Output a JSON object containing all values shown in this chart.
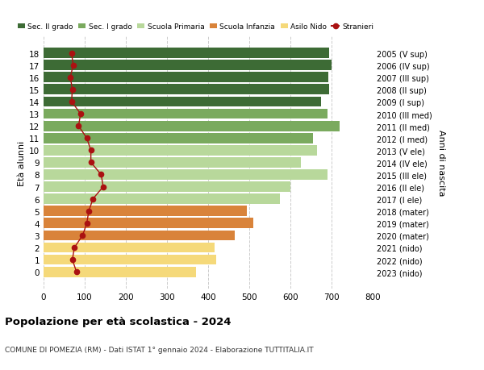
{
  "ages": [
    18,
    17,
    16,
    15,
    14,
    13,
    12,
    11,
    10,
    9,
    8,
    7,
    6,
    5,
    4,
    3,
    2,
    1,
    0
  ],
  "bar_values": [
    695,
    700,
    692,
    695,
    675,
    690,
    720,
    655,
    665,
    625,
    690,
    600,
    575,
    495,
    510,
    465,
    415,
    420,
    370
  ],
  "stranieri_values": [
    68,
    72,
    65,
    70,
    68,
    90,
    85,
    105,
    115,
    115,
    140,
    145,
    120,
    110,
    105,
    95,
    75,
    70,
    80
  ],
  "right_labels": [
    "2005 (V sup)",
    "2006 (IV sup)",
    "2007 (III sup)",
    "2008 (II sup)",
    "2009 (I sup)",
    "2010 (III med)",
    "2011 (II med)",
    "2012 (I med)",
    "2013 (V ele)",
    "2014 (IV ele)",
    "2015 (III ele)",
    "2016 (II ele)",
    "2017 (I ele)",
    "2018 (mater)",
    "2019 (mater)",
    "2020 (mater)",
    "2021 (nido)",
    "2022 (nido)",
    "2023 (nido)"
  ],
  "bar_colors": [
    "#3d6b35",
    "#3d6b35",
    "#3d6b35",
    "#3d6b35",
    "#3d6b35",
    "#7aaa5e",
    "#7aaa5e",
    "#7aaa5e",
    "#b8d89b",
    "#b8d89b",
    "#b8d89b",
    "#b8d89b",
    "#b8d89b",
    "#d9833a",
    "#d9833a",
    "#d9833a",
    "#f5d97a",
    "#f5d97a",
    "#f5d97a"
  ],
  "legend_labels": [
    "Sec. II grado",
    "Sec. I grado",
    "Scuola Primaria",
    "Scuola Infanzia",
    "Asilo Nido",
    "Stranieri"
  ],
  "legend_colors": [
    "#3d6b35",
    "#7aaa5e",
    "#b8d89b",
    "#d9833a",
    "#f5d97a",
    "#aa1111"
  ],
  "stranieri_color": "#aa1111",
  "ylabel": "Età alunni",
  "right_ylabel": "Anni di nascita",
  "title": "Popolazione per età scolastica - 2024",
  "subtitle": "COMUNE DI POMEZIA (RM) - Dati ISTAT 1° gennaio 2024 - Elaborazione TUTTITALIA.IT",
  "xlim": [
    0,
    800
  ],
  "xticks": [
    0,
    100,
    200,
    300,
    400,
    500,
    600,
    700,
    800
  ],
  "bg_color": "#ffffff",
  "grid_color": "#cccccc"
}
